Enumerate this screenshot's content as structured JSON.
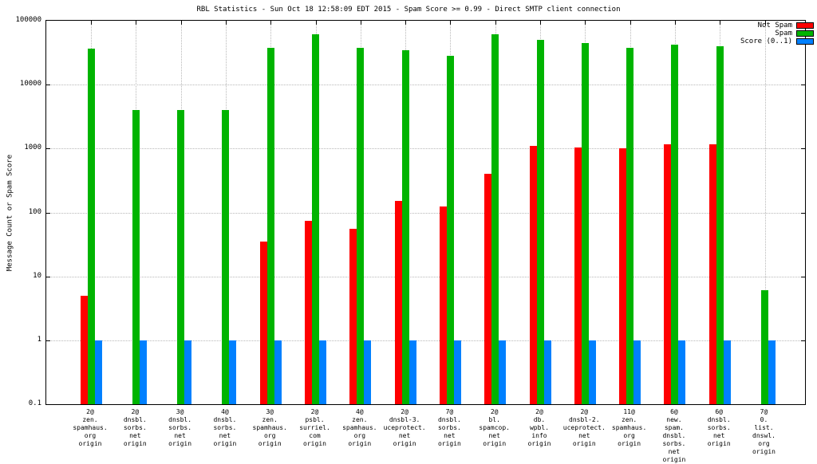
{
  "chart_data": {
    "type": "bar",
    "title": "RBL Statistics - Sun Oct 18 12:58:09 EDT 2015 - Spam Score >= 0.99 - Direct SMTP client connection",
    "ylabel": "Message Count or Spam Score",
    "xlabel": "",
    "yscale": "log",
    "ylim": [
      0.1,
      100000
    ],
    "grid": true,
    "legend_position": "top-right",
    "yticks": [
      "100000",
      "10000",
      "1000",
      "100",
      "10",
      "1",
      "0.1"
    ],
    "categories": [
      "2@\nzen.\nspamhaus.\norg\norigin",
      "2@\ndnsbl.\nsorbs.\nnet\norigin",
      "3@\ndnsbl.\nsorbs.\nnet\norigin",
      "4@\ndnsbl.\nsorbs.\nnet\norigin",
      "3@\nzen.\nspamhaus.\norg\norigin",
      "2@\npsbl.\nsurriel.\ncom\norigin",
      "4@\nzen.\nspamhaus.\norg\norigin",
      "2@\ndnsbl-3.\nuceprotect.\nnet\norigin",
      "7@\ndnsbl.\nsorbs.\nnet\norigin",
      "2@\nbl.\nspamcop.\nnet\norigin",
      "2@\ndb.\nwpbl.\ninfo\norigin",
      "2@\ndnsbl-2.\nuceprotect.\nnet\norigin",
      "11@\nzen.\nspamhaus.\norg\norigin",
      "6@\nnew.\nspam.\ndnsbl.\nsorbs.\nnet\norigin",
      "6@\ndnsbl.\nsorbs.\nnet\norigin",
      "7@\n0.\nlist.\ndnswl.\norg\norigin"
    ],
    "series": [
      {
        "name": "Not Spam",
        "color": "#ff0000",
        "values": [
          5,
          null,
          null,
          null,
          35,
          75,
          55,
          150,
          125,
          400,
          1100,
          1050,
          1000,
          1150,
          1150,
          null
        ]
      },
      {
        "name": "Spam",
        "color": "#00b400",
        "values": [
          37000,
          4000,
          4000,
          4000,
          38000,
          62000,
          38000,
          35000,
          28000,
          62000,
          50000,
          45000,
          38000,
          42000,
          40000,
          6
        ]
      },
      {
        "name": "Score (0..1)",
        "color": "#0080ff",
        "values": [
          1,
          1,
          1,
          1,
          1,
          1,
          1,
          1,
          1,
          1,
          1,
          1,
          1,
          1,
          1,
          1
        ]
      }
    ]
  }
}
